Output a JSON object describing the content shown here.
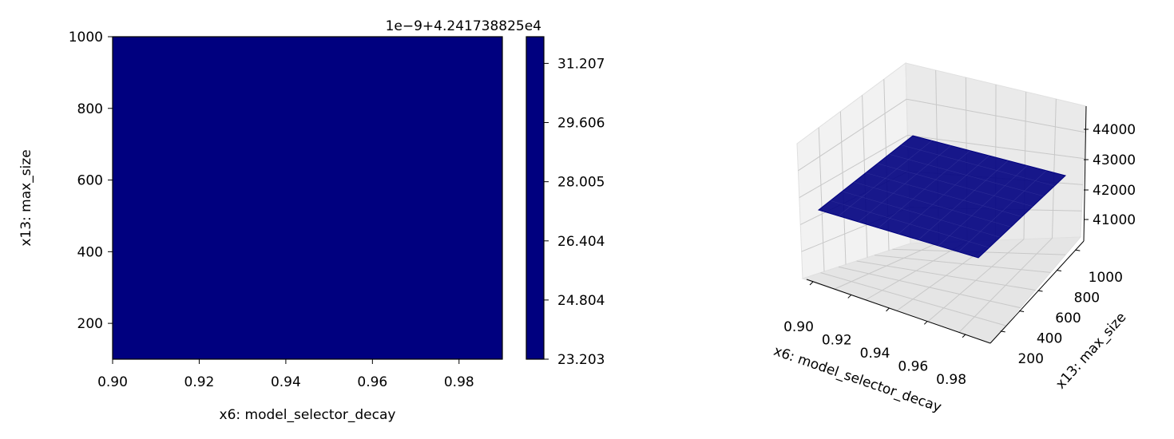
{
  "chart_data": [
    {
      "type": "heatmap",
      "title": "",
      "xlabel": "x6: model_selector_decay",
      "ylabel": "x13: max_size",
      "xlim": [
        0.9,
        0.99
      ],
      "ylim": [
        100,
        1000
      ],
      "x_ticks": [
        "0.90",
        "0.92",
        "0.94",
        "0.96",
        "0.98"
      ],
      "y_ticks": [
        "200",
        "400",
        "600",
        "800",
        "1000"
      ],
      "fill_color": "#00007f",
      "colorbar": {
        "offset_label": "1e−9+4.241738825e4",
        "ticks": [
          "23.203",
          "24.804",
          "26.404",
          "28.005",
          "29.606",
          "31.207"
        ],
        "color": "#00007f"
      }
    },
    {
      "type": "surface",
      "title": "",
      "xlabel": "x6: model_selector_decay",
      "ylabel": "x13: max_size",
      "x_ticks": [
        "0.90",
        "0.92",
        "0.94",
        "0.96",
        "0.98"
      ],
      "y_ticks": [
        "200",
        "400",
        "600",
        "800",
        "1000"
      ],
      "z_ticks": [
        "41000",
        "42000",
        "43000",
        "44000"
      ],
      "z_value": 42417.38825,
      "surface_color": "#00007f",
      "grid": true
    }
  ]
}
